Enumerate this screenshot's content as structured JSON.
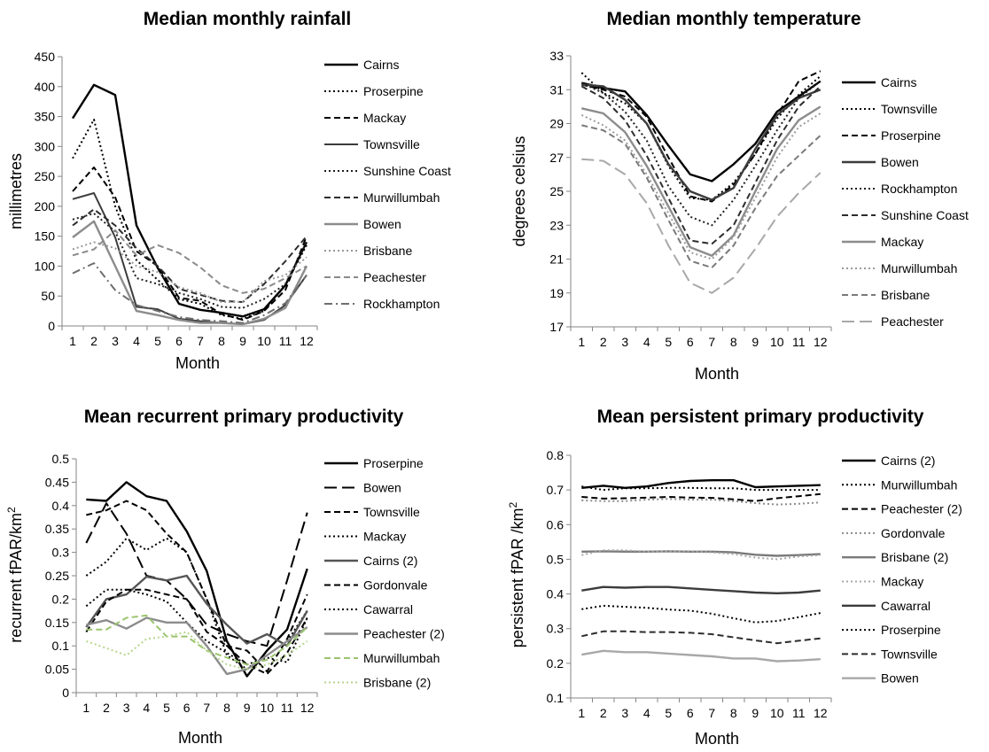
{
  "chart_data": [
    {
      "type": "line",
      "title": "Median monthly rainfall",
      "xlabel": "Month",
      "ylabel": "millimetres",
      "categories": [
        "1",
        "2",
        "3",
        "4",
        "5",
        "6",
        "7",
        "8",
        "9",
        "10",
        "11",
        "12"
      ],
      "ylim": [
        0,
        450
      ],
      "yticks": [
        "0",
        "50",
        "100",
        "150",
        "200",
        "250",
        "300",
        "350",
        "400",
        "450"
      ],
      "grid": false,
      "legend_position": "right",
      "series": [
        {
          "name": "Cairns",
          "color": "#000000",
          "dash": "solid",
          "width": 2.4,
          "values": [
            347,
            403,
            386,
            168,
            97,
            37,
            27,
            22,
            16,
            28,
            68,
            140
          ]
        },
        {
          "name": "Proserpine",
          "color": "#000000",
          "dash": "dot",
          "width": 2,
          "values": [
            280,
            345,
            200,
            110,
            77,
            45,
            37,
            18,
            12,
            25,
            68,
            135
          ]
        },
        {
          "name": "Mackay",
          "color": "#000000",
          "dash": "dash",
          "width": 2,
          "values": [
            225,
            265,
            215,
            125,
            100,
            47,
            42,
            20,
            10,
            25,
            60,
            150
          ]
        },
        {
          "name": "Townsville",
          "color": "#3c3c3c",
          "dash": "solid",
          "width": 2,
          "values": [
            212,
            222,
            148,
            32,
            28,
            12,
            8,
            5,
            3,
            10,
            35,
            85
          ]
        },
        {
          "name": "Sunshine Coast",
          "color": "#1e1e1e",
          "dash": "dot",
          "width": 2,
          "values": [
            178,
            188,
            158,
            80,
            70,
            55,
            45,
            32,
            30,
            45,
            70,
            140
          ]
        },
        {
          "name": "Murwillumbah",
          "color": "#2d2d2d",
          "dash": "dash",
          "width": 2,
          "values": [
            168,
            195,
            168,
            130,
            100,
            62,
            52,
            42,
            40,
            70,
            108,
            150
          ]
        },
        {
          "name": "Bowen",
          "color": "#8c8c8c",
          "dash": "solid",
          "width": 2.4,
          "values": [
            148,
            175,
            100,
            25,
            18,
            10,
            5,
            5,
            3,
            12,
            30,
            100
          ]
        },
        {
          "name": "Brisbane",
          "color": "#9a9a9a",
          "dash": "dot",
          "width": 2,
          "values": [
            128,
            140,
            130,
            100,
            90,
            65,
            55,
            40,
            40,
            75,
            85,
            115
          ]
        },
        {
          "name": "Peachester",
          "color": "#8a8a8a",
          "dash": "dash",
          "width": 2,
          "values": [
            118,
            128,
            160,
            118,
            135,
            122,
            98,
            68,
            55,
            62,
            80,
            100
          ]
        },
        {
          "name": "Rockhampton",
          "color": "#6e6e6e",
          "dash": "dashdot",
          "width": 2,
          "values": [
            88,
            105,
            60,
            35,
            25,
            15,
            10,
            8,
            5,
            18,
            38,
            85
          ]
        }
      ]
    },
    {
      "type": "line",
      "title": "Median monthly temperature",
      "xlabel": "Month",
      "ylabel": "degrees  celsius",
      "categories": [
        "1",
        "2",
        "3",
        "4",
        "5",
        "6",
        "7",
        "8",
        "9",
        "10",
        "11",
        "12"
      ],
      "ylim": [
        17,
        33
      ],
      "yticks": [
        "17",
        "19",
        "21",
        "23",
        "25",
        "27",
        "29",
        "31",
        "33"
      ],
      "grid": false,
      "legend_position": "right",
      "series": [
        {
          "name": "Cairns",
          "color": "#000000",
          "dash": "solid",
          "width": 2.4,
          "values": [
            31.4,
            31.1,
            30.9,
            29.5,
            27.7,
            26.0,
            25.6,
            26.6,
            27.8,
            29.7,
            30.6,
            31.5
          ]
        },
        {
          "name": "Townsville",
          "color": "#000000",
          "dash": "dot",
          "width": 2,
          "values": [
            32.0,
            30.8,
            30.2,
            29.0,
            26.5,
            24.6,
            24.5,
            25.5,
            27.2,
            29.3,
            30.7,
            31.8
          ]
        },
        {
          "name": "Proserpine",
          "color": "#000000",
          "dash": "dash",
          "width": 2,
          "values": [
            31.3,
            31.0,
            30.6,
            29.4,
            27.0,
            24.7,
            24.4,
            25.4,
            27.2,
            29.5,
            31.5,
            32.1
          ]
        },
        {
          "name": "Bowen",
          "color": "#3c3c3c",
          "dash": "solid",
          "width": 2.4,
          "values": [
            31.3,
            31.2,
            30.4,
            29.0,
            26.6,
            25.0,
            24.5,
            25.2,
            27.5,
            29.5,
            30.5,
            31.0
          ]
        },
        {
          "name": "Rockhampton",
          "color": "#1e1e1e",
          "dash": "dot",
          "width": 2,
          "values": [
            31.4,
            30.8,
            29.7,
            28.0,
            25.3,
            23.5,
            23.0,
            24.5,
            26.5,
            28.6,
            30.5,
            31.5
          ]
        },
        {
          "name": "Sunshine Coast",
          "color": "#2d2d2d",
          "dash": "dash",
          "width": 2,
          "values": [
            31.2,
            30.5,
            29.2,
            27.1,
            24.6,
            22.1,
            21.9,
            23.0,
            25.5,
            28.0,
            30.0,
            31.2
          ]
        },
        {
          "name": "Mackay",
          "color": "#8c8c8c",
          "dash": "solid",
          "width": 2.4,
          "values": [
            29.9,
            29.6,
            28.5,
            26.5,
            24.1,
            21.7,
            21.2,
            22.4,
            25.0,
            27.5,
            29.2,
            30.0
          ]
        },
        {
          "name": "Murwillumbah",
          "color": "#9a9a9a",
          "dash": "dot",
          "width": 2,
          "values": [
            29.5,
            28.9,
            28.0,
            26.0,
            23.7,
            21.4,
            21.0,
            22.3,
            24.6,
            27.0,
            28.8,
            29.6
          ]
        },
        {
          "name": "Brisbane",
          "color": "#7a7a7a",
          "dash": "dash",
          "width": 2,
          "values": [
            28.9,
            28.6,
            27.8,
            25.8,
            23.3,
            20.9,
            20.5,
            21.8,
            24.0,
            25.9,
            27.1,
            28.3
          ]
        },
        {
          "name": "Peachester",
          "color": "#a8a8a8",
          "dash": "longdash",
          "width": 2,
          "values": [
            26.9,
            26.8,
            26.0,
            24.3,
            21.8,
            19.6,
            19.0,
            19.9,
            21.6,
            23.5,
            24.9,
            26.1
          ]
        }
      ]
    },
    {
      "type": "line",
      "title": "Mean recurrent primary productivity",
      "xlabel": "Month",
      "ylabel": "recurrent  fPAR/km",
      "ylabel_sup": "2",
      "categories": [
        "1",
        "2",
        "3",
        "4",
        "5",
        "6",
        "7",
        "8",
        "9",
        "10",
        "11",
        "12"
      ],
      "ylim": [
        0,
        0.5
      ],
      "yticks": [
        "0",
        "0.05",
        "0.1",
        "0.15",
        "0.2",
        "0.25",
        "0.3",
        "0.35",
        "0.4",
        "0.45",
        "0.5"
      ],
      "grid": false,
      "legend_position": "right",
      "series": [
        {
          "name": "Proserpine",
          "color": "#000000",
          "dash": "solid",
          "width": 2.4,
          "values": [
            0.413,
            0.41,
            0.45,
            0.42,
            0.41,
            0.345,
            0.26,
            0.11,
            0.035,
            0.09,
            0.135,
            0.265
          ]
        },
        {
          "name": "Bowen",
          "color": "#000000",
          "dash": "longdash",
          "width": 2,
          "values": [
            0.32,
            0.405,
            0.34,
            0.25,
            0.24,
            0.2,
            0.145,
            0.125,
            0.11,
            0.1,
            0.24,
            0.385
          ]
        },
        {
          "name": "Townsville",
          "color": "#000000",
          "dash": "dash",
          "width": 2,
          "values": [
            0.38,
            0.39,
            0.41,
            0.39,
            0.34,
            0.3,
            0.2,
            0.1,
            0.09,
            0.045,
            0.115,
            0.21
          ]
        },
        {
          "name": "Mackay",
          "color": "#000000",
          "dash": "dot",
          "width": 2,
          "values": [
            0.25,
            0.28,
            0.33,
            0.305,
            0.33,
            0.3,
            0.2,
            0.08,
            0.05,
            0.08,
            0.11,
            0.175
          ]
        },
        {
          "name": "Cairns (2)",
          "color": "#555555",
          "dash": "solid",
          "width": 2.4,
          "values": [
            0.14,
            0.2,
            0.21,
            0.248,
            0.24,
            0.25,
            0.19,
            0.145,
            0.105,
            0.125,
            0.1,
            0.175
          ]
        },
        {
          "name": "Gordonvale",
          "color": "#000000",
          "dash": "dash",
          "width": 2,
          "values": [
            0.13,
            0.195,
            0.22,
            0.22,
            0.21,
            0.2,
            0.13,
            0.1,
            0.06,
            0.04,
            0.085,
            0.16
          ]
        },
        {
          "name": "Cawarral",
          "color": "#000000",
          "dash": "dot",
          "width": 2,
          "values": [
            0.185,
            0.22,
            0.22,
            0.21,
            0.195,
            0.15,
            0.11,
            0.085,
            0.06,
            0.075,
            0.065,
            0.16
          ]
        },
        {
          "name": "Peachester (2)",
          "color": "#8c8c8c",
          "dash": "solid",
          "width": 2.4,
          "values": [
            0.145,
            0.155,
            0.137,
            0.16,
            0.15,
            0.15,
            0.1,
            0.04,
            0.05,
            0.08,
            0.11,
            0.14
          ]
        },
        {
          "name": "Murwillumbah",
          "color": "#9ac46e",
          "dash": "dash",
          "width": 2,
          "values": [
            0.135,
            0.135,
            0.16,
            0.165,
            0.12,
            0.12,
            0.09,
            0.075,
            0.06,
            0.07,
            0.1,
            0.14
          ]
        },
        {
          "name": "Brisbane (2)",
          "color": "#b5d68c",
          "dash": "dot",
          "width": 2,
          "values": [
            0.11,
            0.095,
            0.08,
            0.115,
            0.12,
            0.13,
            0.09,
            0.06,
            0.05,
            0.06,
            0.08,
            0.11
          ]
        }
      ]
    },
    {
      "type": "line",
      "title": "Mean persistent primary productivity",
      "xlabel": "Month",
      "ylabel": "persistent  fPAR /km",
      "ylabel_sup": "2",
      "categories": [
        "1",
        "2",
        "3",
        "4",
        "5",
        "6",
        "7",
        "8",
        "9",
        "10",
        "11",
        "12"
      ],
      "ylim": [
        0.1,
        0.8
      ],
      "yticks": [
        "0.1",
        "0.2",
        "0.3",
        "0.4",
        "0.5",
        "0.6",
        "0.7",
        "0.8"
      ],
      "grid": false,
      "legend_position": "right",
      "series": [
        {
          "name": "Cairns (2)",
          "color": "#000000",
          "dash": "solid",
          "width": 2.4,
          "values": [
            0.706,
            0.712,
            0.706,
            0.71,
            0.72,
            0.726,
            0.728,
            0.728,
            0.708,
            0.71,
            0.712,
            0.714
          ]
        },
        {
          "name": "Murwillumbah",
          "color": "#000000",
          "dash": "dot",
          "width": 2,
          "values": [
            0.71,
            0.7,
            0.705,
            0.705,
            0.706,
            0.706,
            0.705,
            0.705,
            0.7,
            0.7,
            0.7,
            0.7
          ]
        },
        {
          "name": "Peachester (2)",
          "color": "#000000",
          "dash": "dash",
          "width": 2,
          "values": [
            0.68,
            0.675,
            0.676,
            0.678,
            0.68,
            0.678,
            0.677,
            0.673,
            0.668,
            0.676,
            0.682,
            0.688
          ]
        },
        {
          "name": "Gordonvale",
          "color": "#8c8c8c",
          "dash": "dot",
          "width": 2,
          "values": [
            0.67,
            0.668,
            0.668,
            0.672,
            0.674,
            0.672,
            0.672,
            0.668,
            0.662,
            0.658,
            0.66,
            0.664
          ]
        },
        {
          "name": "Brisbane (2)",
          "color": "#7a7a7a",
          "dash": "solid",
          "width": 2.4,
          "values": [
            0.522,
            0.523,
            0.522,
            0.522,
            0.523,
            0.522,
            0.522,
            0.52,
            0.513,
            0.51,
            0.512,
            0.515
          ]
        },
        {
          "name": "Mackay",
          "color": "#a8a8a8",
          "dash": "dot",
          "width": 2,
          "values": [
            0.512,
            0.526,
            0.526,
            0.522,
            0.523,
            0.523,
            0.52,
            0.515,
            0.505,
            0.5,
            0.508,
            0.512
          ]
        },
        {
          "name": "Cawarral",
          "color": "#3c3c3c",
          "dash": "solid",
          "width": 2.4,
          "values": [
            0.41,
            0.42,
            0.418,
            0.42,
            0.42,
            0.416,
            0.412,
            0.408,
            0.404,
            0.402,
            0.404,
            0.41
          ]
        },
        {
          "name": "Proserpine",
          "color": "#000000",
          "dash": "dot",
          "width": 2,
          "values": [
            0.356,
            0.366,
            0.363,
            0.36,
            0.355,
            0.352,
            0.343,
            0.33,
            0.318,
            0.322,
            0.333,
            0.345
          ]
        },
        {
          "name": "Townsville",
          "color": "#2d2d2d",
          "dash": "dash",
          "width": 2,
          "values": [
            0.278,
            0.292,
            0.292,
            0.29,
            0.29,
            0.288,
            0.284,
            0.275,
            0.266,
            0.258,
            0.265,
            0.272
          ]
        },
        {
          "name": "Bowen",
          "color": "#a8a8a8",
          "dash": "solid",
          "width": 2.4,
          "values": [
            0.225,
            0.236,
            0.232,
            0.232,
            0.228,
            0.224,
            0.22,
            0.214,
            0.214,
            0.206,
            0.208,
            0.212
          ]
        }
      ]
    }
  ]
}
